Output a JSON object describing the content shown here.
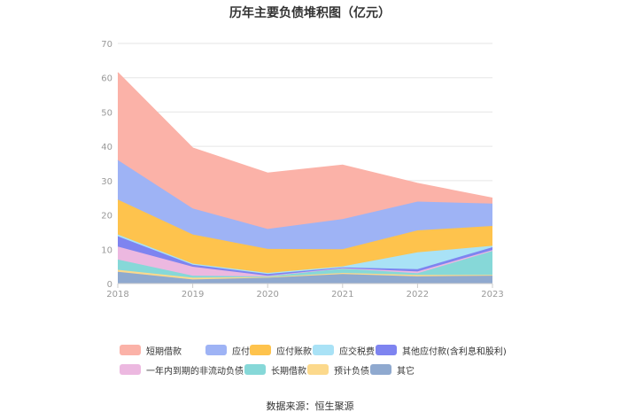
{
  "title": "历年主要负债堆积图（亿元）",
  "source": "数据来源：恒生聚源",
  "chart_data": {
    "type": "area",
    "stacked": true,
    "title": "历年主要负债堆积图（亿元）",
    "x": [
      "2018",
      "2019",
      "2020",
      "2021",
      "2022",
      "2023"
    ],
    "ylim": [
      0,
      70
    ],
    "yticks": [
      0,
      10,
      20,
      30,
      40,
      50,
      60,
      70
    ],
    "grid": true,
    "legend_position": "bottom",
    "series": [
      {
        "name": "其它",
        "color": "#8fa9cf",
        "values": [
          3.4,
          1.2,
          1.7,
          2.8,
          2.1,
          2.3
        ]
      },
      {
        "name": "预计负债",
        "color": "#fcd98c",
        "values": [
          0.6,
          0.5,
          0.2,
          0.3,
          0.4,
          0.2
        ]
      },
      {
        "name": "长期借款",
        "color": "#86d8d8",
        "values": [
          3.0,
          0.6,
          0.2,
          1.3,
          0.5,
          7.0
        ]
      },
      {
        "name": "一年内到期的非流动负债",
        "color": "#ecb8e0",
        "values": [
          3.8,
          2.6,
          0.2,
          0.1,
          0.5,
          0.3
        ]
      },
      {
        "name": "其他应付款(含利息和股利)",
        "color": "#7e84f0",
        "values": [
          3.0,
          0.6,
          0.5,
          0.2,
          0.7,
          0.8
        ]
      },
      {
        "name": "应交税费",
        "color": "#a9e2f6",
        "values": [
          0.5,
          0.3,
          0.3,
          0.3,
          4.9,
          0.4
        ]
      },
      {
        "name": "应付账款",
        "color": "#fec34d",
        "values": [
          10.2,
          8.5,
          7.0,
          5.0,
          6.4,
          5.8
        ]
      },
      {
        "name": "应付票据",
        "color": "#9eb3f5",
        "values": [
          11.5,
          7.6,
          5.8,
          8.8,
          8.4,
          6.5
        ]
      },
      {
        "name": "短期借款",
        "color": "#fbb2a8",
        "values": [
          25.5,
          17.6,
          16.3,
          15.7,
          5.3,
          1.6
        ]
      }
    ]
  }
}
